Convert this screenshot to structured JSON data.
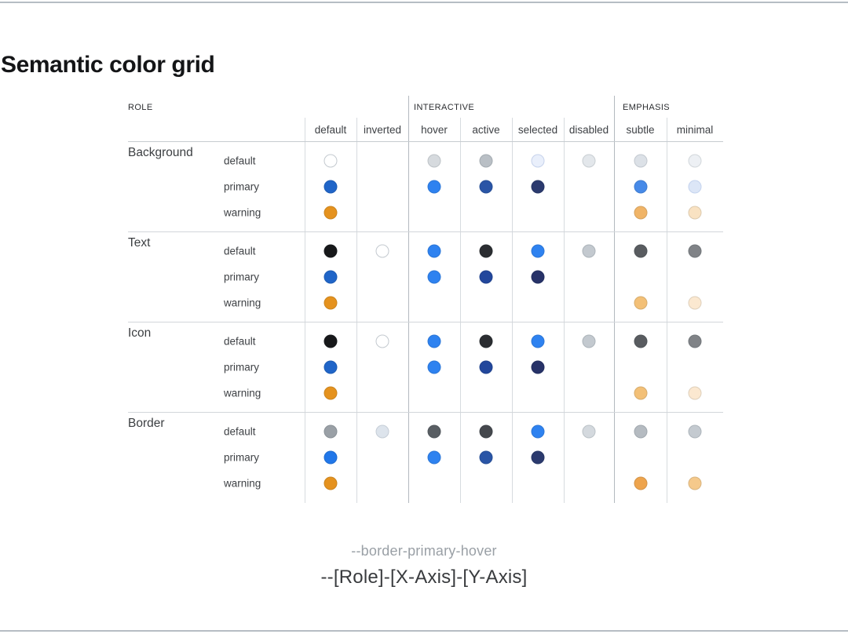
{
  "title": "Semantic color grid",
  "grid": {
    "role_header": "ROLE",
    "group_headers": [
      {
        "label": "INTERACTIVE"
      },
      {
        "label": "EMPHASIS"
      }
    ],
    "columns": [
      "default",
      "inverted",
      "hover",
      "active",
      "selected",
      "disabled",
      "subtle",
      "minimal"
    ],
    "row_groups": [
      {
        "role": "Background",
        "variants": [
          {
            "name": "default",
            "cells": [
              {
                "fill": "#ffffff",
                "border": "#c3c9cf"
              },
              null,
              {
                "fill": "#d6dade"
              },
              {
                "fill": "#b9bfc5"
              },
              {
                "fill": "#e9effb",
                "border": "#c6d2eb"
              },
              {
                "fill": "#e3e7eb"
              },
              {
                "fill": "#dce1e7"
              },
              {
                "fill": "#edf0f4"
              }
            ]
          },
          {
            "name": "primary",
            "cells": [
              {
                "fill": "#2065c8"
              },
              null,
              {
                "fill": "#2e82f0"
              },
              {
                "fill": "#2a55a6"
              },
              {
                "fill": "#2b3a6e"
              },
              null,
              {
                "fill": "#478ae8"
              },
              {
                "fill": "#dce6f7",
                "border": "#c4d3ee"
              }
            ]
          },
          {
            "name": "warning",
            "cells": [
              {
                "fill": "#e5921e"
              },
              null,
              null,
              null,
              null,
              null,
              {
                "fill": "#f0b467"
              },
              {
                "fill": "#f9e2c2"
              }
            ]
          }
        ]
      },
      {
        "role": "Text",
        "variants": [
          {
            "name": "default",
            "cells": [
              {
                "fill": "#17181a"
              },
              {
                "fill": "#ffffff",
                "border": "#c3c9cf"
              },
              {
                "fill": "#2e82f0"
              },
              {
                "fill": "#2b2d31"
              },
              {
                "fill": "#2e82f0"
              },
              {
                "fill": "#c3c9cf"
              },
              {
                "fill": "#595c60"
              },
              {
                "fill": "#808387"
              }
            ]
          },
          {
            "name": "primary",
            "cells": [
              {
                "fill": "#2065c8"
              },
              null,
              {
                "fill": "#2e82f0"
              },
              {
                "fill": "#22479c"
              },
              {
                "fill": "#273268"
              },
              null,
              null,
              null
            ]
          },
          {
            "name": "warning",
            "cells": [
              {
                "fill": "#e5921e"
              },
              null,
              null,
              null,
              null,
              null,
              {
                "fill": "#f3c077"
              },
              {
                "fill": "#fbe8d0"
              }
            ]
          }
        ]
      },
      {
        "role": "Icon",
        "variants": [
          {
            "name": "default",
            "cells": [
              {
                "fill": "#17181a"
              },
              {
                "fill": "#ffffff",
                "border": "#c3c9cf"
              },
              {
                "fill": "#2e82f0"
              },
              {
                "fill": "#2b2d31"
              },
              {
                "fill": "#2e82f0"
              },
              {
                "fill": "#c3c9cf"
              },
              {
                "fill": "#595c60"
              },
              {
                "fill": "#808387"
              }
            ]
          },
          {
            "name": "primary",
            "cells": [
              {
                "fill": "#2065c8"
              },
              null,
              {
                "fill": "#2e82f0"
              },
              {
                "fill": "#22479c"
              },
              {
                "fill": "#273268"
              },
              null,
              null,
              null
            ]
          },
          {
            "name": "warning",
            "cells": [
              {
                "fill": "#e5921e"
              },
              null,
              null,
              null,
              null,
              null,
              {
                "fill": "#f3c077"
              },
              {
                "fill": "#fbe8d0"
              }
            ]
          }
        ]
      },
      {
        "role": "Border",
        "variants": [
          {
            "name": "default",
            "cells": [
              {
                "fill": "#9aa0a6"
              },
              {
                "fill": "#dde4ec",
                "border": "#c5cdd6"
              },
              {
                "fill": "#595e63"
              },
              {
                "fill": "#45484d"
              },
              {
                "fill": "#2e82f0"
              },
              {
                "fill": "#d4d9de"
              },
              {
                "fill": "#b5bbc1"
              },
              {
                "fill": "#c4cad0"
              }
            ]
          },
          {
            "name": "primary",
            "cells": [
              {
                "fill": "#2177e9"
              },
              null,
              {
                "fill": "#2e82f0"
              },
              {
                "fill": "#2a55a6"
              },
              {
                "fill": "#2b3a6e"
              },
              null,
              null,
              null
            ]
          },
          {
            "name": "warning",
            "cells": [
              {
                "fill": "#e5921e"
              },
              null,
              null,
              null,
              null,
              null,
              {
                "fill": "#eea44d"
              },
              {
                "fill": "#f5c98b"
              }
            ]
          }
        ]
      }
    ]
  },
  "footer": {
    "hovered_token": "--border-primary-hover",
    "naming_formula": "--[Role]-[X-Axis]-[Y-Axis]"
  }
}
